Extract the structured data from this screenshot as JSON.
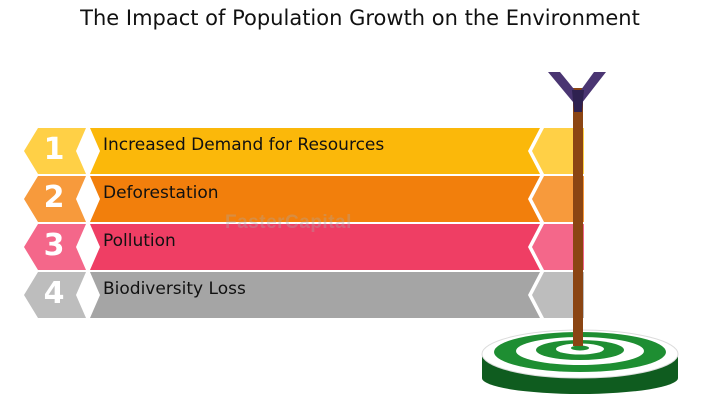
{
  "title": "The Impact of Population Growth on the Environment",
  "watermark": "FasterCapital",
  "steps": [
    {
      "number": "1",
      "label": "Increased Demand for Resources",
      "color": "#FBB80A",
      "tab_color": "#FFD046"
    },
    {
      "number": "2",
      "label": "Deforestation",
      "color": "#F27F0C",
      "tab_color": "#F79A3C"
    },
    {
      "number": "3",
      "label": "Pollution",
      "color": "#EF3E64",
      "tab_color": "#F4678A"
    },
    {
      "number": "4",
      "label": "Biodiversity Loss",
      "color": "#A5A5A5",
      "tab_color": "#BDBDBD"
    }
  ],
  "colors": {
    "arrow_shaft": "#8B4513",
    "arrow_fletch": "#4A3572",
    "target_green": "#1E8E32",
    "target_dark": "#0F5C1F"
  },
  "icons": [
    "arrow-icon",
    "target-icon"
  ]
}
